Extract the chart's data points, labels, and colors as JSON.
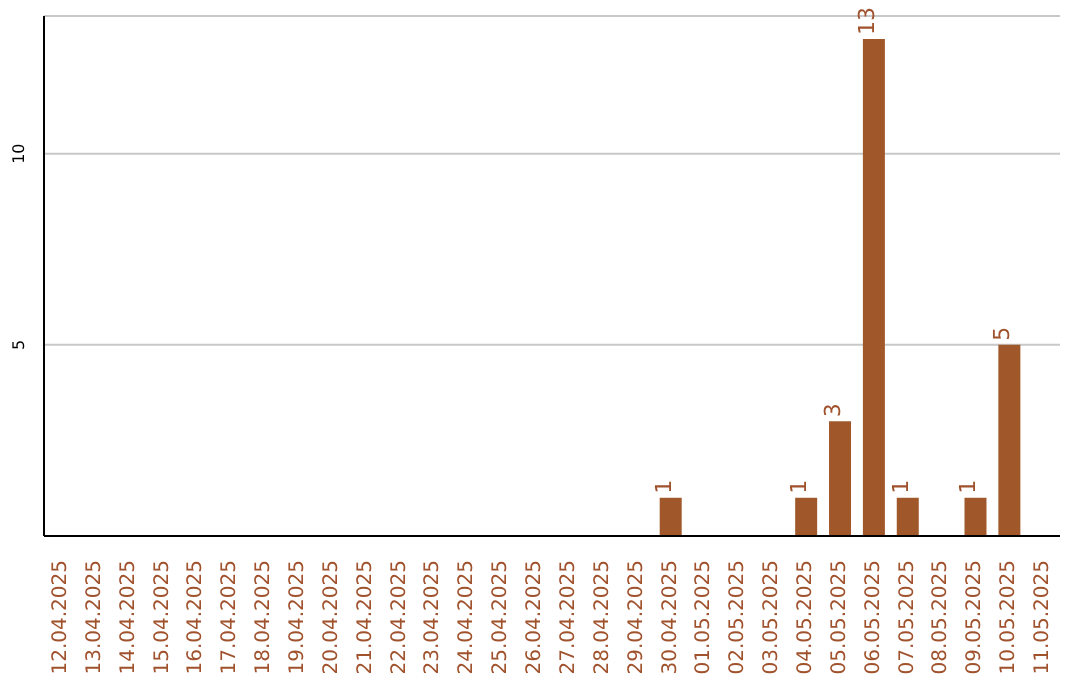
{
  "chart_data": {
    "type": "bar",
    "categories": [
      "12.04.2025",
      "13.04.2025",
      "14.04.2025",
      "15.04.2025",
      "16.04.2025",
      "17.04.2025",
      "18.04.2025",
      "19.04.2025",
      "20.04.2025",
      "21.04.2025",
      "22.04.2025",
      "23.04.2025",
      "24.04.2025",
      "25.04.2025",
      "26.04.2025",
      "27.04.2025",
      "28.04.2025",
      "29.04.2025",
      "30.04.2025",
      "01.05.2025",
      "02.05.2025",
      "03.05.2025",
      "04.05.2025",
      "05.05.2025",
      "06.05.2025",
      "07.05.2025",
      "08.05.2025",
      "09.05.2025",
      "10.05.2025",
      "11.05.2025"
    ],
    "values": [
      0,
      0,
      0,
      0,
      0,
      0,
      0,
      0,
      0,
      0,
      0,
      0,
      0,
      0,
      0,
      0,
      0,
      0,
      1,
      0,
      0,
      0,
      1,
      3,
      13,
      1,
      0,
      1,
      5,
      0
    ],
    "value_labels": [
      null,
      null,
      null,
      null,
      null,
      null,
      null,
      null,
      null,
      null,
      null,
      null,
      null,
      null,
      null,
      null,
      null,
      null,
      "1",
      null,
      null,
      null,
      "1",
      "3",
      "13",
      "1",
      null,
      "1",
      "5",
      null
    ],
    "color": "#a0582a",
    "ylim": [
      0,
      13.6
    ],
    "yticks": [
      5,
      10
    ],
    "grid": "y"
  }
}
